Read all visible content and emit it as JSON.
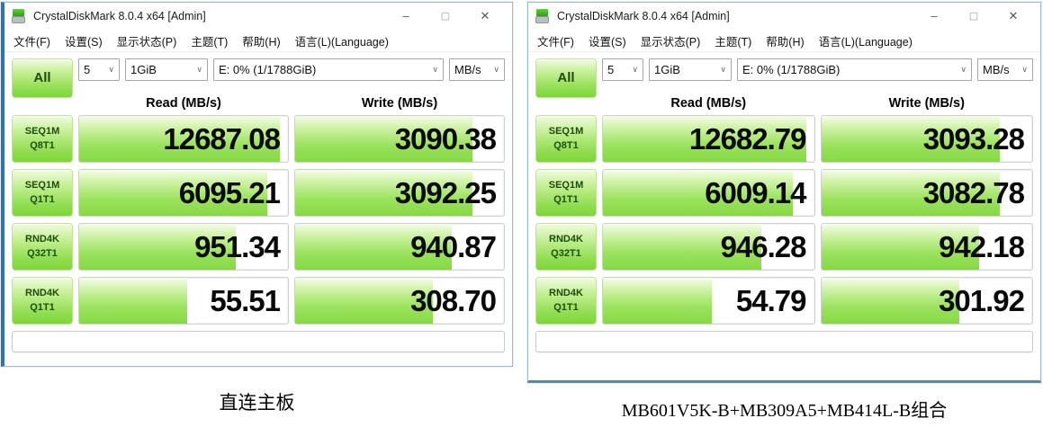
{
  "window_controls": {
    "minimize": "–",
    "maximize": "▢",
    "close": "✕"
  },
  "windows": [
    {
      "title": "CrystalDiskMark 8.0.4 x64 [Admin]",
      "menu": [
        "文件(F)",
        "设置(S)",
        "显示状态(P)",
        "主题(T)",
        "帮助(H)",
        "语言(L)(Language)"
      ],
      "toolbar": {
        "all_label": "All",
        "test_count": "5",
        "test_size": "1GiB",
        "drive": "E: 0% (1/1788GiB)",
        "unit": "MB/s"
      },
      "columns": {
        "read": "Read (MB/s)",
        "write": "Write (MB/s)"
      },
      "rows": [
        {
          "test": "SEQ1M",
          "queue": "Q8T1",
          "read": "12687.08",
          "write": "3090.38"
        },
        {
          "test": "SEQ1M",
          "queue": "Q1T1",
          "read": "6095.21",
          "write": "3092.25"
        },
        {
          "test": "RND4K",
          "queue": "Q32T1",
          "read": "951.34",
          "write": "940.87"
        },
        {
          "test": "RND4K",
          "queue": "Q1T1",
          "read": "55.51",
          "write": "308.70"
        }
      ],
      "caption": "直连主板"
    },
    {
      "title": "CrystalDiskMark 8.0.4 x64 [Admin]",
      "menu": [
        "文件(F)",
        "设置(S)",
        "显示状态(P)",
        "主题(T)",
        "帮助(H)",
        "语言(L)(Language)"
      ],
      "toolbar": {
        "all_label": "All",
        "test_count": "5",
        "test_size": "1GiB",
        "drive": "E: 0% (1/1788GiB)",
        "unit": "MB/s"
      },
      "columns": {
        "read": "Read (MB/s)",
        "write": "Write (MB/s)"
      },
      "rows": [
        {
          "test": "SEQ1M",
          "queue": "Q8T1",
          "read": "12682.79",
          "write": "3093.28"
        },
        {
          "test": "SEQ1M",
          "queue": "Q1T1",
          "read": "6009.14",
          "write": "3082.78"
        },
        {
          "test": "RND4K",
          "queue": "Q32T1",
          "read": "946.28",
          "write": "942.18"
        },
        {
          "test": "RND4K",
          "queue": "Q1T1",
          "read": "54.79",
          "write": "301.92"
        }
      ],
      "caption": "MB601V5K-B+MB309A5+MB414L-B组合"
    }
  ],
  "colors": {
    "accent_green": "#7fd53c",
    "window_border_blue": "#2e74b5"
  }
}
